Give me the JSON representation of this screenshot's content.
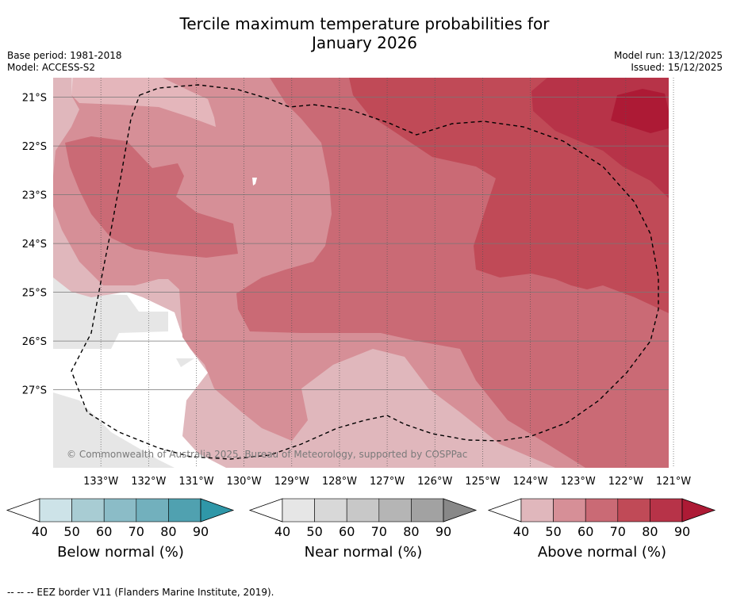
{
  "title": "Tercile maximum temperature probabilities for",
  "subtitle": "January 2026",
  "meta": {
    "base_period": "Base period: 1981-2018",
    "model": "Model: ACCESS-S2",
    "model_run": "Model run: 13/12/2025",
    "issued": "Issued: 15/12/2025"
  },
  "map": {
    "lon_range": [
      -134.0,
      -121.1
    ],
    "lat_range": [
      -28.6,
      -20.6
    ],
    "lat_ticks": [
      "21°S",
      "22°S",
      "23°S",
      "24°S",
      "25°S",
      "26°S",
      "27°S"
    ],
    "lon_ticks": [
      "133°W",
      "132°W",
      "131°W",
      "130°W",
      "129°W",
      "128°W",
      "127°W",
      "126°W",
      "125°W",
      "124°W",
      "123°W",
      "122°W",
      "121°W"
    ],
    "copyright": "© Commonwealth of Australia 2025, Bureau of Meteorology, supported by COSPPac"
  },
  "colorbars": [
    {
      "label": "Below normal (%)",
      "ticks": [
        "40",
        "50",
        "60",
        "70",
        "80",
        "90"
      ],
      "colors": [
        "#cde3e8",
        "#a8ccd3",
        "#8bbcc7",
        "#72b0bd",
        "#50a1b0",
        "#2f97a8"
      ]
    },
    {
      "label": "Near normal (%)",
      "ticks": [
        "40",
        "50",
        "60",
        "70",
        "80",
        "90"
      ],
      "colors": [
        "#e6e6e6",
        "#d8d8d8",
        "#c8c8c8",
        "#b5b5b5",
        "#a2a2a2",
        "#888888"
      ]
    },
    {
      "label": "Above normal (%)",
      "ticks": [
        "40",
        "50",
        "60",
        "70",
        "80",
        "90"
      ],
      "colors": [
        "#e0b7bc",
        "#d68f97",
        "#ca6a75",
        "#c04a57",
        "#b73348",
        "#ad1a35"
      ]
    }
  ],
  "footnote": "--  --  -- EEZ border V11 (Flanders Marine Institute, 2019)."
}
